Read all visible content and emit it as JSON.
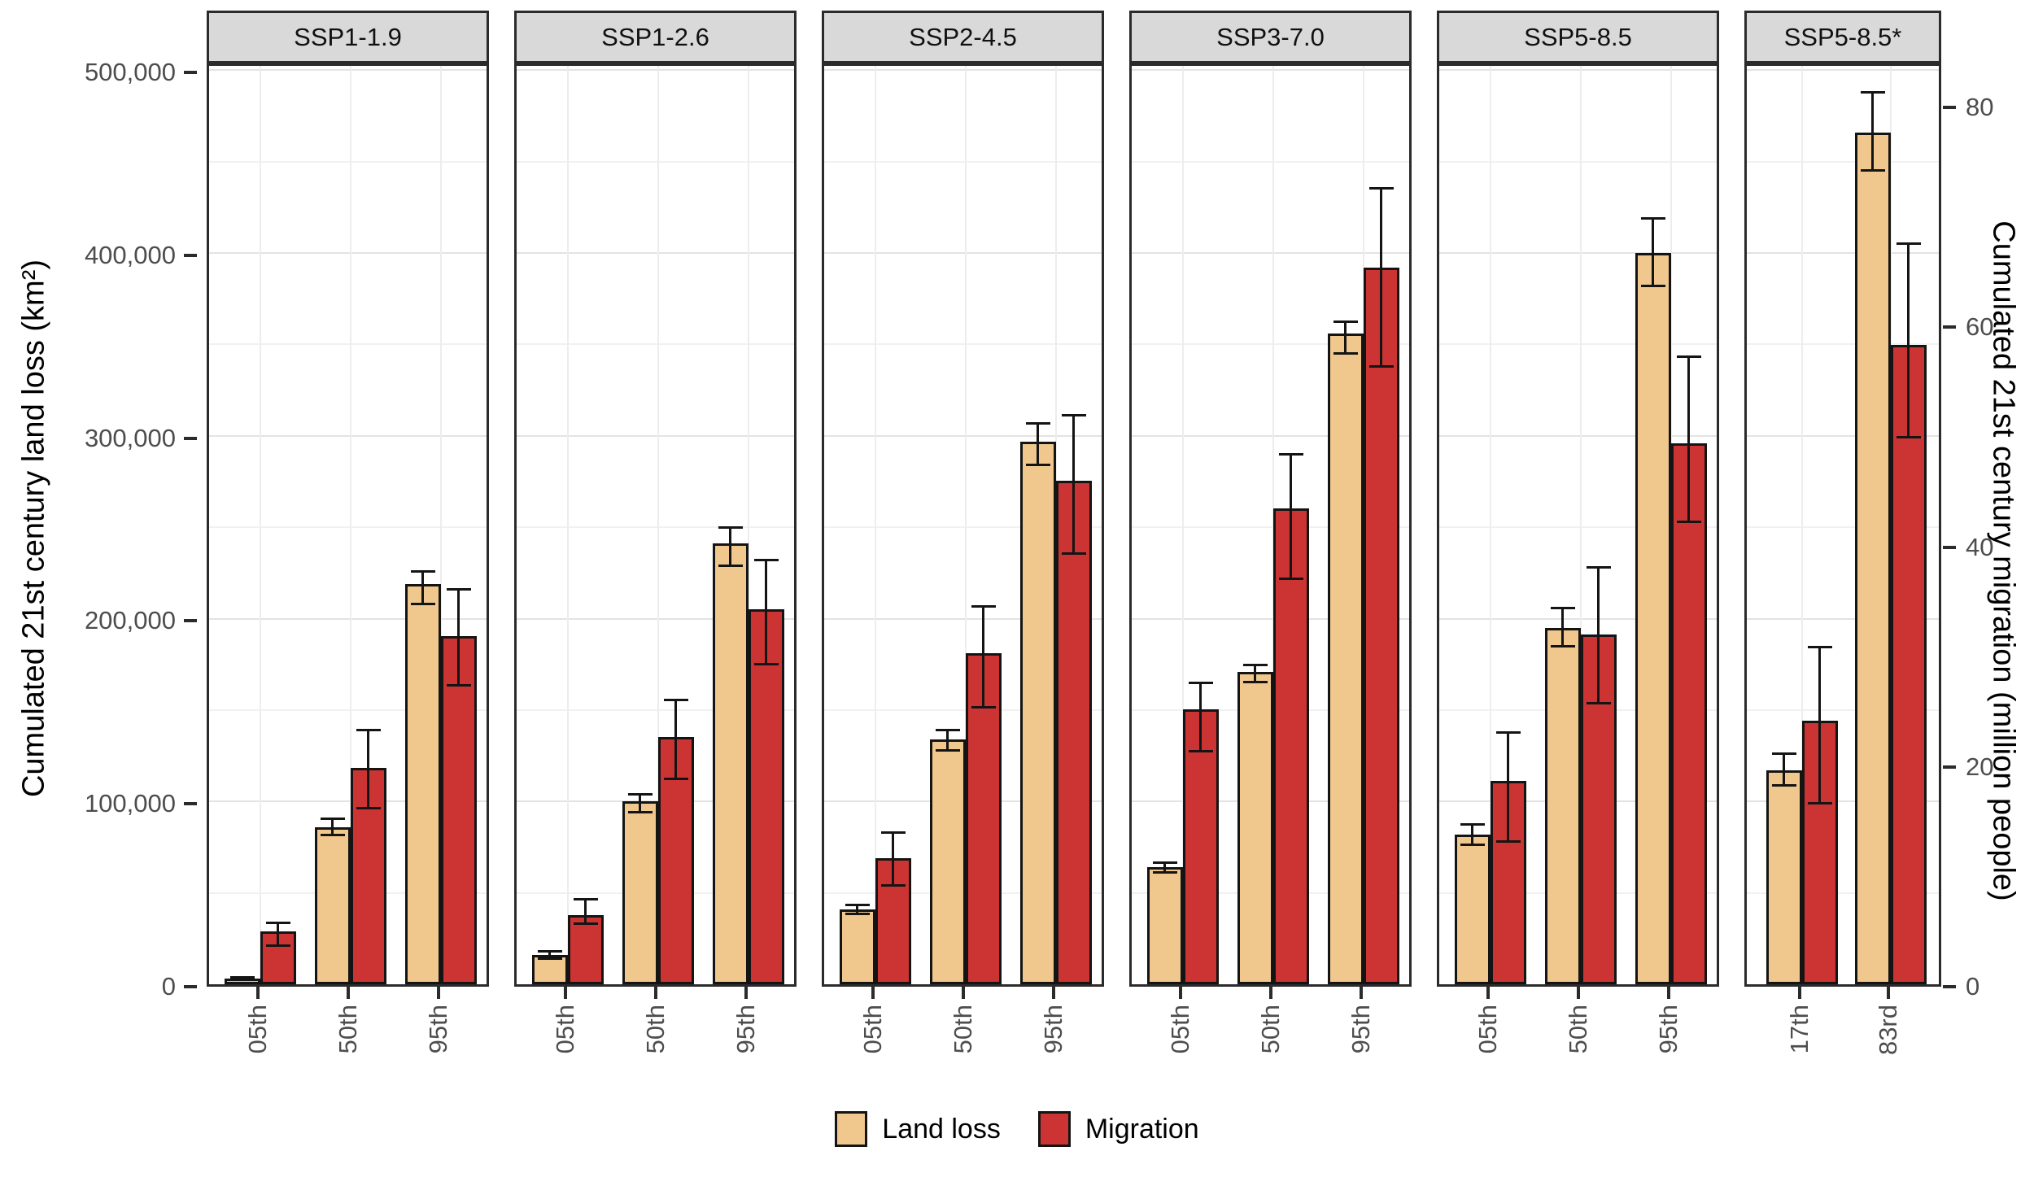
{
  "chart_data": {
    "type": "bar",
    "title": "",
    "left_axis": {
      "label": "Cumulated 21st century land loss (km²)",
      "ticks": [
        {
          "value": 500000,
          "label": "500,000"
        },
        {
          "value": 400000,
          "label": "400,000"
        },
        {
          "value": 300000,
          "label": "300,000"
        },
        {
          "value": 200000,
          "label": "200,000"
        },
        {
          "value": 100000,
          "label": "100,000"
        },
        {
          "value": 0,
          "label": "0"
        }
      ],
      "range": [
        0,
        505000
      ],
      "gridline_step": 50000
    },
    "right_axis": {
      "label": "Cumulated 21st century migration (million people)",
      "ticks": [
        {
          "value": 80,
          "label": "80"
        },
        {
          "value": 60,
          "label": "60"
        },
        {
          "value": 40,
          "label": "40"
        },
        {
          "value": 20,
          "label": "20"
        },
        {
          "value": 0,
          "label": "0"
        }
      ],
      "range": [
        0,
        84
      ]
    },
    "series_meta": {
      "land_loss": {
        "name": "Land loss",
        "color": "#F0C88E",
        "axis": "left"
      },
      "migration": {
        "name": "Migration",
        "color": "#CC3433",
        "axis": "right"
      }
    },
    "panels": [
      {
        "label": "SSP1-1.9",
        "categories": [
          "05th",
          "50th",
          "95th"
        ],
        "land_loss": {
          "values": [
            3000,
            86000,
            219000
          ],
          "err_lo": [
            2300,
            81500,
            208000
          ],
          "err_hi": [
            3800,
            90500,
            226000
          ]
        },
        "migration": {
          "values": [
            4.8,
            19.7,
            31.7
          ],
          "err_lo": [
            3.5,
            16.0,
            27.2
          ],
          "err_hi": [
            5.6,
            23.1,
            35.9
          ]
        }
      },
      {
        "label": "SSP1-2.6",
        "categories": [
          "05th",
          "50th",
          "95th"
        ],
        "land_loss": {
          "values": [
            16000,
            100000,
            241000
          ],
          "err_lo": [
            14000,
            94000,
            229000
          ],
          "err_hi": [
            18000,
            104000,
            250000
          ]
        },
        "migration": {
          "values": [
            6.3,
            22.5,
            34.1
          ],
          "err_lo": [
            5.5,
            18.7,
            29.1
          ],
          "err_hi": [
            7.7,
            25.9,
            38.6
          ]
        }
      },
      {
        "label": "SSP2-4.5",
        "categories": [
          "05th",
          "50th",
          "95th"
        ],
        "land_loss": {
          "values": [
            41000,
            134000,
            297000
          ],
          "err_lo": [
            38500,
            128000,
            284000
          ],
          "err_hi": [
            43500,
            139000,
            307000
          ]
        },
        "migration": {
          "values": [
            11.5,
            30.1,
            45.8
          ],
          "err_lo": [
            9.0,
            25.2,
            39.2
          ],
          "err_hi": [
            13.8,
            34.4,
            51.8
          ]
        }
      },
      {
        "label": "SSP3-7.0",
        "categories": [
          "05th",
          "50th",
          "95th"
        ],
        "land_loss": {
          "values": [
            64000,
            171000,
            356000
          ],
          "err_lo": [
            61000,
            165500,
            345000
          ],
          "err_hi": [
            66500,
            174500,
            362500
          ]
        },
        "migration": {
          "values": [
            25.0,
            43.3,
            65.2
          ],
          "err_lo": [
            21.2,
            36.9,
            56.2
          ],
          "err_hi": [
            27.4,
            48.2,
            72.4
          ]
        }
      },
      {
        "label": "SSP5-8.5",
        "categories": [
          "05th",
          "50th",
          "95th"
        ],
        "land_loss": {
          "values": [
            82000,
            195000,
            400000
          ],
          "err_lo": [
            76500,
            185000,
            382000
          ],
          "err_hi": [
            87500,
            206000,
            419000
          ]
        },
        "migration": {
          "values": [
            18.5,
            31.8,
            49.2
          ],
          "err_lo": [
            13.0,
            25.6,
            42.1
          ],
          "err_hi": [
            22.9,
            37.9,
            57.1
          ]
        }
      },
      {
        "label": "SSP5-8.5*",
        "categories": [
          "17th",
          "83rd"
        ],
        "land_loss": {
          "values": [
            117000,
            466000
          ],
          "err_lo": [
            109000,
            445000
          ],
          "err_hi": [
            126000,
            488000
          ]
        },
        "migration": {
          "values": [
            24.0,
            58.2
          ],
          "err_lo": [
            16.5,
            49.8
          ],
          "err_hi": [
            30.7,
            67.4
          ]
        }
      }
    ],
    "legend": [
      {
        "label": "Land loss",
        "color": "#F0C88E"
      },
      {
        "label": "Migration",
        "color": "#CC3433"
      }
    ],
    "grid": true,
    "legend_position": "bottom"
  }
}
